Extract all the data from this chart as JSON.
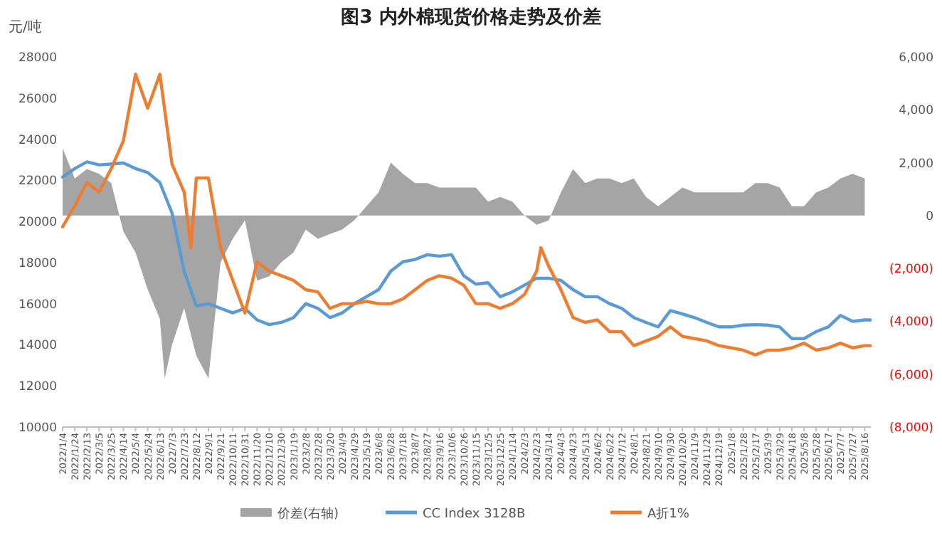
{
  "chart_data": {
    "type": "line",
    "title": "图3 内外棉现货价格走势及价差",
    "ylabel": "元/吨",
    "legend": "bottom",
    "xlim": [
      "2022-01-04",
      "2025-08-26"
    ],
    "xticks": [
      {
        "value": "2022-01-04",
        "label": "2022/1/4"
      },
      {
        "value": "2022-01-24",
        "label": "2022/1/24"
      },
      {
        "value": "2022-02-13",
        "label": "2022/2/13"
      },
      {
        "value": "2022-03-05",
        "label": "2022/3/5"
      },
      {
        "value": "2022-03-25",
        "label": "2022/3/25"
      },
      {
        "value": "2022-04-14",
        "label": "2022/4/14"
      },
      {
        "value": "2022-05-04",
        "label": "2022/5/4"
      },
      {
        "value": "2022-05-24",
        "label": "2022/5/24"
      },
      {
        "value": "2022-06-13",
        "label": "2022/6/13"
      },
      {
        "value": "2022-07-03",
        "label": "2022/7/3"
      },
      {
        "value": "2022-07-23",
        "label": "2022/7/23"
      },
      {
        "value": "2022-08-12",
        "label": "2022/8/12"
      },
      {
        "value": "2022-09-01",
        "label": "2022/9/1"
      },
      {
        "value": "2022-09-21",
        "label": "2022/9/21"
      },
      {
        "value": "2022-10-11",
        "label": "2022/10/11"
      },
      {
        "value": "2022-10-31",
        "label": "2022/10/31"
      },
      {
        "value": "2022-11-20",
        "label": "2022/11/20"
      },
      {
        "value": "2022-12-10",
        "label": "2022/12/10"
      },
      {
        "value": "2022-12-30",
        "label": "2022/12/30"
      },
      {
        "value": "2023-01-19",
        "label": "2023/1/19"
      },
      {
        "value": "2023-02-08",
        "label": "2023/2/8"
      },
      {
        "value": "2023-02-28",
        "label": "2023/2/28"
      },
      {
        "value": "2023-03-20",
        "label": "2023/3/20"
      },
      {
        "value": "2023-04-09",
        "label": "2023/4/9"
      },
      {
        "value": "2023-04-29",
        "label": "2023/4/29"
      },
      {
        "value": "2023-05-19",
        "label": "2023/5/19"
      },
      {
        "value": "2023-06-08",
        "label": "2023/6/8"
      },
      {
        "value": "2023-06-28",
        "label": "2023/6/28"
      },
      {
        "value": "2023-07-18",
        "label": "2023/7/18"
      },
      {
        "value": "2023-08-07",
        "label": "2023/8/7"
      },
      {
        "value": "2023-08-27",
        "label": "2023/8/27"
      },
      {
        "value": "2023-09-16",
        "label": "2023/9/16"
      },
      {
        "value": "2023-10-06",
        "label": "2023/10/6"
      },
      {
        "value": "2023-10-26",
        "label": "2023/10/26"
      },
      {
        "value": "2023-11-15",
        "label": "2023/11/15"
      },
      {
        "value": "2023-12-05",
        "label": "2023/12/5"
      },
      {
        "value": "2023-12-25",
        "label": "2023/12/25"
      },
      {
        "value": "2024-01-14",
        "label": "2024/1/14"
      },
      {
        "value": "2024-02-03",
        "label": "2024/2/3"
      },
      {
        "value": "2024-02-23",
        "label": "2024/2/23"
      },
      {
        "value": "2024-03-14",
        "label": "2024/3/14"
      },
      {
        "value": "2024-04-03",
        "label": "2024/4/3"
      },
      {
        "value": "2024-04-23",
        "label": "2024/4/23"
      },
      {
        "value": "2024-05-13",
        "label": "2024/5/13"
      },
      {
        "value": "2024-06-02",
        "label": "2024/6/2"
      },
      {
        "value": "2024-06-22",
        "label": "2024/6/22"
      },
      {
        "value": "2024-07-12",
        "label": "2024/7/12"
      },
      {
        "value": "2024-08-01",
        "label": "2024/8/1"
      },
      {
        "value": "2024-08-21",
        "label": "2024/8/21"
      },
      {
        "value": "2024-09-10",
        "label": "2024/9/10"
      },
      {
        "value": "2024-09-30",
        "label": "2024/9/30"
      },
      {
        "value": "2024-10-20",
        "label": "2024/10/20"
      },
      {
        "value": "2024-11-09",
        "label": "2024/11/9"
      },
      {
        "value": "2024-11-29",
        "label": "2024/11/29"
      },
      {
        "value": "2024-12-19",
        "label": "2024/12/19"
      },
      {
        "value": "2025-01-08",
        "label": "2025/1/8"
      },
      {
        "value": "2025-01-28",
        "label": "2025/1/28"
      },
      {
        "value": "2025-02-17",
        "label": "2025/2/17"
      },
      {
        "value": "2025-03-09",
        "label": "2025/3/9"
      },
      {
        "value": "2025-03-29",
        "label": "2025/3/29"
      },
      {
        "value": "2025-04-18",
        "label": "2025/4/18"
      },
      {
        "value": "2025-05-08",
        "label": "2025/5/8"
      },
      {
        "value": "2025-05-28",
        "label": "2025/5/28"
      },
      {
        "value": "2025-06-17",
        "label": "2025/6/17"
      },
      {
        "value": "2025-07-07",
        "label": "2025/7/7"
      },
      {
        "value": "2025-07-27",
        "label": "2025/7/27"
      },
      {
        "value": "2025-08-16",
        "label": "2025/8/16"
      }
    ],
    "ylim": [
      10000,
      28000
    ],
    "yticks": [
      10000,
      12000,
      14000,
      16000,
      18000,
      20000,
      22000,
      24000,
      26000,
      28000
    ],
    "y2lim": [
      -8000,
      6000
    ],
    "y2ticks": [
      {
        "value": -8000,
        "label": "(8,000)"
      },
      {
        "value": -6000,
        "label": "(6,000)"
      },
      {
        "value": -4000,
        "label": "(4,000)"
      },
      {
        "value": -2000,
        "label": "(2,000)"
      },
      {
        "value": 0,
        "label": "0"
      },
      {
        "value": 2000,
        "label": "2,000"
      },
      {
        "value": 4000,
        "label": "4,000"
      },
      {
        "value": 6000,
        "label": "6,000"
      }
    ],
    "series": [
      {
        "name": "价差(右轴)",
        "type": "area",
        "axis": "y2",
        "color": "#a5a5a5",
        "x": [
          "2022-01-04",
          "2022-01-24",
          "2022-02-13",
          "2022-03-05",
          "2022-03-25",
          "2022-04-14",
          "2022-05-04",
          "2022-05-24",
          "2022-06-13",
          "2022-06-21",
          "2022-07-03",
          "2022-07-23",
          "2022-08-12",
          "2022-09-01",
          "2022-09-21",
          "2022-10-11",
          "2022-10-31",
          "2022-11-20",
          "2022-12-10",
          "2022-12-30",
          "2023-01-19",
          "2023-02-08",
          "2023-02-28",
          "2023-03-20",
          "2023-04-09",
          "2023-04-29",
          "2023-05-19",
          "2023-06-08",
          "2023-06-28",
          "2023-07-18",
          "2023-08-07",
          "2023-08-27",
          "2023-09-16",
          "2023-10-06",
          "2023-10-26",
          "2023-11-15",
          "2023-12-05",
          "2023-12-25",
          "2024-01-14",
          "2024-02-03",
          "2024-02-23",
          "2024-03-14",
          "2024-04-03",
          "2024-04-23",
          "2024-05-13",
          "2024-06-02",
          "2024-06-22",
          "2024-07-12",
          "2024-08-01",
          "2024-08-21",
          "2024-09-10",
          "2024-09-30",
          "2024-10-20",
          "2024-11-09",
          "2024-11-29",
          "2024-12-19",
          "2025-01-08",
          "2025-01-28",
          "2025-02-17",
          "2025-03-09",
          "2025-03-29",
          "2025-04-18",
          "2025-05-08",
          "2025-05-28",
          "2025-06-17",
          "2025-07-07",
          "2025-07-27",
          "2025-08-16"
        ],
        "values": [
          2550,
          1400,
          1760,
          1580,
          1230,
          -600,
          -1400,
          -2800,
          -3900,
          -6160,
          -4900,
          -3500,
          -5300,
          -6160,
          -1760,
          -880,
          -180,
          -2460,
          -2300,
          -1760,
          -1400,
          -530,
          -880,
          -700,
          -530,
          -180,
          350,
          880,
          2000,
          1580,
          1230,
          1230,
          1060,
          1060,
          1060,
          1060,
          530,
          700,
          530,
          0,
          -350,
          -180,
          880,
          1760,
          1230,
          1400,
          1400,
          1230,
          1400,
          700,
          350,
          700,
          1060,
          880,
          880,
          880,
          880,
          880,
          1230,
          1230,
          1060,
          350,
          350,
          880,
          1060,
          1400,
          1580,
          1400
        ]
      },
      {
        "name": "CC Index 3128B",
        "type": "line",
        "color": "#5b9bd5",
        "x": [
          "2022-01-04",
          "2022-01-24",
          "2022-02-13",
          "2022-03-05",
          "2022-03-25",
          "2022-04-14",
          "2022-05-04",
          "2022-05-24",
          "2022-06-13",
          "2022-07-03",
          "2022-07-23",
          "2022-08-12",
          "2022-09-01",
          "2022-09-21",
          "2022-10-11",
          "2022-10-31",
          "2022-11-20",
          "2022-12-10",
          "2022-12-30",
          "2023-01-19",
          "2023-02-08",
          "2023-02-28",
          "2023-03-20",
          "2023-04-09",
          "2023-04-29",
          "2023-05-19",
          "2023-06-08",
          "2023-06-28",
          "2023-07-18",
          "2023-08-07",
          "2023-08-27",
          "2023-09-16",
          "2023-10-06",
          "2023-10-26",
          "2023-11-15",
          "2023-12-05",
          "2023-12-25",
          "2024-01-14",
          "2024-02-03",
          "2024-02-23",
          "2024-03-14",
          "2024-04-03",
          "2024-04-23",
          "2024-05-13",
          "2024-06-02",
          "2024-06-22",
          "2024-07-12",
          "2024-08-01",
          "2024-08-21",
          "2024-09-10",
          "2024-09-30",
          "2024-10-20",
          "2024-11-09",
          "2024-11-29",
          "2024-12-19",
          "2025-01-08",
          "2025-01-28",
          "2025-02-17",
          "2025-03-09",
          "2025-03-29",
          "2025-04-18",
          "2025-05-08",
          "2025-05-28",
          "2025-06-17",
          "2025-07-07",
          "2025-07-27",
          "2025-08-16",
          "2025-08-25"
        ],
        "values": [
          22160,
          22570,
          22900,
          22750,
          22790,
          22840,
          22570,
          22380,
          21890,
          20410,
          17580,
          15890,
          16000,
          15770,
          15550,
          15770,
          15210,
          14980,
          15090,
          15320,
          16000,
          15770,
          15320,
          15550,
          16000,
          16340,
          16680,
          17580,
          18040,
          18150,
          18380,
          18310,
          18380,
          17360,
          16950,
          17020,
          16340,
          16570,
          16900,
          17240,
          17240,
          17130,
          16680,
          16340,
          16340,
          16000,
          15770,
          15320,
          15090,
          14870,
          15660,
          15500,
          15320,
          15090,
          14870,
          14870,
          14960,
          14980,
          14960,
          14870,
          14300,
          14300,
          14640,
          14870,
          15430,
          15140,
          15210,
          15210
        ]
      },
      {
        "name": "A折1%",
        "type": "line",
        "color": "#ed7d31",
        "x": [
          "2022-01-04",
          "2022-01-24",
          "2022-02-13",
          "2022-03-05",
          "2022-03-25",
          "2022-04-14",
          "2022-05-04",
          "2022-05-24",
          "2022-06-13",
          "2022-07-03",
          "2022-07-23",
          "2022-08-03",
          "2022-08-12",
          "2022-09-01",
          "2022-09-21",
          "2022-10-11",
          "2022-10-31",
          "2022-11-20",
          "2022-12-10",
          "2022-12-30",
          "2023-01-19",
          "2023-02-08",
          "2023-02-28",
          "2023-03-20",
          "2023-04-09",
          "2023-04-29",
          "2023-05-19",
          "2023-06-08",
          "2023-06-28",
          "2023-07-18",
          "2023-08-07",
          "2023-08-27",
          "2023-09-16",
          "2023-10-06",
          "2023-10-26",
          "2023-11-15",
          "2023-12-05",
          "2023-12-25",
          "2024-01-14",
          "2024-02-03",
          "2024-02-23",
          "2024-03-01",
          "2024-03-14",
          "2024-04-03",
          "2024-04-23",
          "2024-05-13",
          "2024-06-02",
          "2024-06-22",
          "2024-07-12",
          "2024-08-01",
          "2024-08-21",
          "2024-09-10",
          "2024-09-30",
          "2024-10-20",
          "2024-11-09",
          "2024-11-29",
          "2024-12-19",
          "2025-01-08",
          "2025-01-28",
          "2025-02-17",
          "2025-03-09",
          "2025-03-29",
          "2025-04-18",
          "2025-05-08",
          "2025-05-28",
          "2025-06-17",
          "2025-07-07",
          "2025-07-27",
          "2025-08-16",
          "2025-08-25"
        ],
        "values": [
          19740,
          20750,
          21890,
          21430,
          22570,
          23920,
          27160,
          25510,
          27160,
          22790,
          21430,
          18720,
          22110,
          22110,
          18720,
          17130,
          15550,
          18040,
          17580,
          17360,
          17130,
          16680,
          16570,
          15770,
          16000,
          16000,
          16110,
          16000,
          16000,
          16230,
          16680,
          17130,
          17360,
          17240,
          16900,
          16000,
          16000,
          15770,
          16000,
          16450,
          17580,
          18720,
          17810,
          16680,
          15320,
          15090,
          15210,
          14640,
          14640,
          13960,
          14190,
          14410,
          14870,
          14410,
          14300,
          14190,
          13960,
          13850,
          13740,
          13510,
          13740,
          13740,
          13850,
          14080,
          13740,
          13850,
          14080,
          13850,
          13960,
          13960
        ]
      }
    ]
  }
}
